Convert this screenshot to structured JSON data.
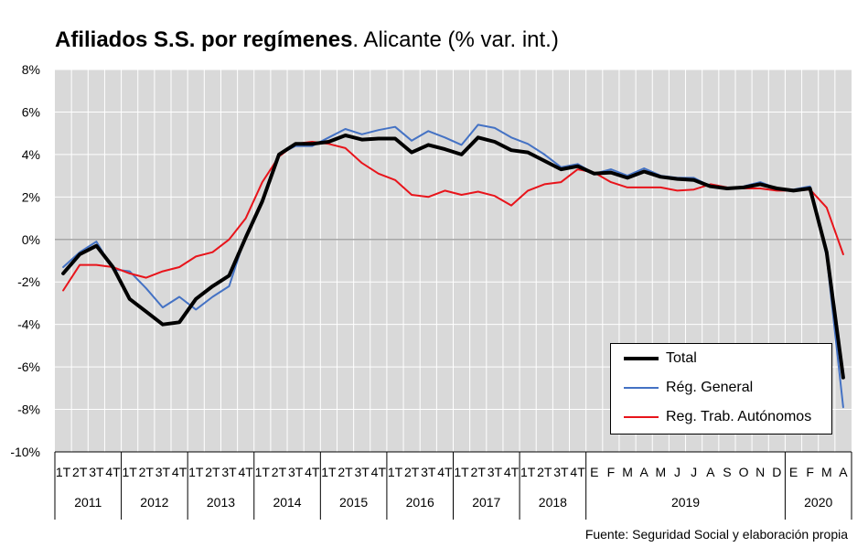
{
  "title": {
    "bold": "Afiliados S.S. por regímenes",
    "rest": ". Alicante (% var. int.)"
  },
  "source": "Fuente: Seguridad Social y elaboración propia",
  "colors": {
    "total": "#000000",
    "general": "#4472C4",
    "autonomos": "#E8141B",
    "plot_bg": "#D9D9D9",
    "grid": "#ffffff",
    "zero_line": "#A6A6A6"
  },
  "chart_data": {
    "type": "line",
    "ylim": [
      -10,
      8
    ],
    "yticks": [
      -10,
      -8,
      -6,
      -4,
      -2,
      0,
      2,
      4,
      6,
      8
    ],
    "ytick_labels": [
      "-10%",
      "-8%",
      "-6%",
      "-4%",
      "-2%",
      "0%",
      "2%",
      "4%",
      "6%",
      "8%"
    ],
    "x": [
      "1T",
      "2T",
      "3T",
      "4T",
      "1T",
      "2T",
      "3T",
      "4T",
      "1T",
      "2T",
      "3T",
      "4T",
      "1T",
      "2T",
      "3T",
      "4T",
      "1T",
      "2T",
      "3T",
      "4T",
      "1T",
      "2T",
      "3T",
      "4T",
      "1T",
      "2T",
      "3T",
      "4T",
      "1T",
      "2T",
      "3T",
      "4T",
      "E",
      "F",
      "M",
      "A",
      "M",
      "J",
      "J",
      "A",
      "S",
      "O",
      "N",
      "D",
      "E",
      "F",
      "M",
      "A"
    ],
    "year_groups": [
      {
        "label": "2011",
        "count": 4
      },
      {
        "label": "2012",
        "count": 4
      },
      {
        "label": "2013",
        "count": 4
      },
      {
        "label": "2014",
        "count": 4
      },
      {
        "label": "2015",
        "count": 4
      },
      {
        "label": "2016",
        "count": 4
      },
      {
        "label": "2017",
        "count": 4
      },
      {
        "label": "2018",
        "count": 4
      },
      {
        "label": "2019",
        "count": 12
      },
      {
        "label": "2020",
        "count": 4
      }
    ],
    "grid": true,
    "legend": "bottom-right",
    "series": [
      {
        "name": "Total",
        "color": "#000000",
        "values": [
          -1.6,
          -0.7,
          -0.3,
          -1.3,
          -2.8,
          -3.4,
          -4.0,
          -3.9,
          -2.8,
          -2.2,
          -1.7,
          0.1,
          1.8,
          4.0,
          4.5,
          4.5,
          4.6,
          4.9,
          4.7,
          4.75,
          4.75,
          4.1,
          4.45,
          4.25,
          4.0,
          4.8,
          4.6,
          4.2,
          4.1,
          3.7,
          3.3,
          3.45,
          3.1,
          3.15,
          2.9,
          3.2,
          2.95,
          2.85,
          2.8,
          2.5,
          2.4,
          2.45,
          2.6,
          2.4,
          2.3,
          2.4,
          -0.6,
          -6.5
        ]
      },
      {
        "name": "Rég. General",
        "color": "#4472C4",
        "values": [
          -1.3,
          -0.6,
          -0.1,
          -1.4,
          -1.5,
          -2.3,
          -3.2,
          -2.7,
          -3.3,
          -2.7,
          -2.2,
          0.2,
          1.8,
          4.0,
          4.4,
          4.4,
          4.8,
          5.2,
          4.95,
          5.15,
          5.3,
          4.65,
          5.1,
          4.8,
          4.45,
          5.4,
          5.25,
          4.8,
          4.5,
          4.0,
          3.4,
          3.55,
          3.1,
          3.3,
          3.0,
          3.35,
          3.0,
          2.9,
          2.9,
          2.5,
          2.4,
          2.5,
          2.7,
          2.4,
          2.35,
          2.5,
          -0.8,
          -7.9
        ]
      },
      {
        "name": "Reg. Trab. Autónomos",
        "color": "#E8141B",
        "values": [
          -2.4,
          -1.2,
          -1.2,
          -1.3,
          -1.6,
          -1.8,
          -1.5,
          -1.3,
          -0.8,
          -0.6,
          0.0,
          1.0,
          2.7,
          3.9,
          4.5,
          4.6,
          4.5,
          4.3,
          3.6,
          3.1,
          2.8,
          2.1,
          2.0,
          2.3,
          2.1,
          2.25,
          2.05,
          1.6,
          2.3,
          2.6,
          2.7,
          3.3,
          3.15,
          2.7,
          2.45,
          2.45,
          2.45,
          2.3,
          2.35,
          2.6,
          2.45,
          2.4,
          2.4,
          2.3,
          2.3,
          2.35,
          1.5,
          -0.7
        ]
      }
    ]
  }
}
